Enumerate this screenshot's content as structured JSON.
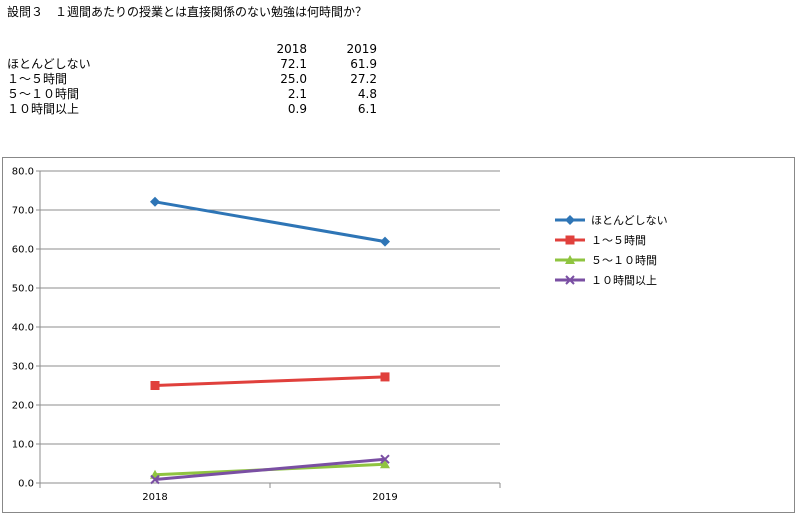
{
  "title": "設問３　１週間あたりの授業とは直接関係のない勉強は何時間か？",
  "table": {
    "headers": [
      "2018",
      "2019"
    ],
    "rows": [
      {
        "label": "ほとんどしない",
        "v2018": "72.1",
        "v2019": "61.9"
      },
      {
        "label": "１～５時間",
        "v2018": "25.0",
        "v2019": "27.2"
      },
      {
        "label": "５～１０時間",
        "v2018": "2.1",
        "v2019": "4.8"
      },
      {
        "label": "１０時間以上",
        "v2018": "0.9",
        "v2019": "6.1"
      }
    ]
  },
  "chart_data": {
    "type": "line",
    "x": [
      "2018",
      "2019"
    ],
    "series": [
      {
        "name": "ほとんどしない",
        "values": [
          72.1,
          61.9
        ],
        "color": "#2e75b6",
        "marker": "diamond"
      },
      {
        "name": "１～５時間",
        "values": [
          25.0,
          27.2
        ],
        "color": "#e0403c",
        "marker": "square"
      },
      {
        "name": "５～１０時間",
        "values": [
          2.1,
          4.8
        ],
        "color": "#8fc440",
        "marker": "triangle"
      },
      {
        "name": "１０時間以上",
        "values": [
          0.9,
          6.1
        ],
        "color": "#7a4fa3",
        "marker": "x"
      }
    ],
    "ylim": [
      0,
      80
    ],
    "yticks": [
      "0.0",
      "10.0",
      "20.0",
      "30.0",
      "40.0",
      "50.0",
      "60.0",
      "70.0",
      "80.0"
    ],
    "grid": true,
    "legend": "right"
  }
}
